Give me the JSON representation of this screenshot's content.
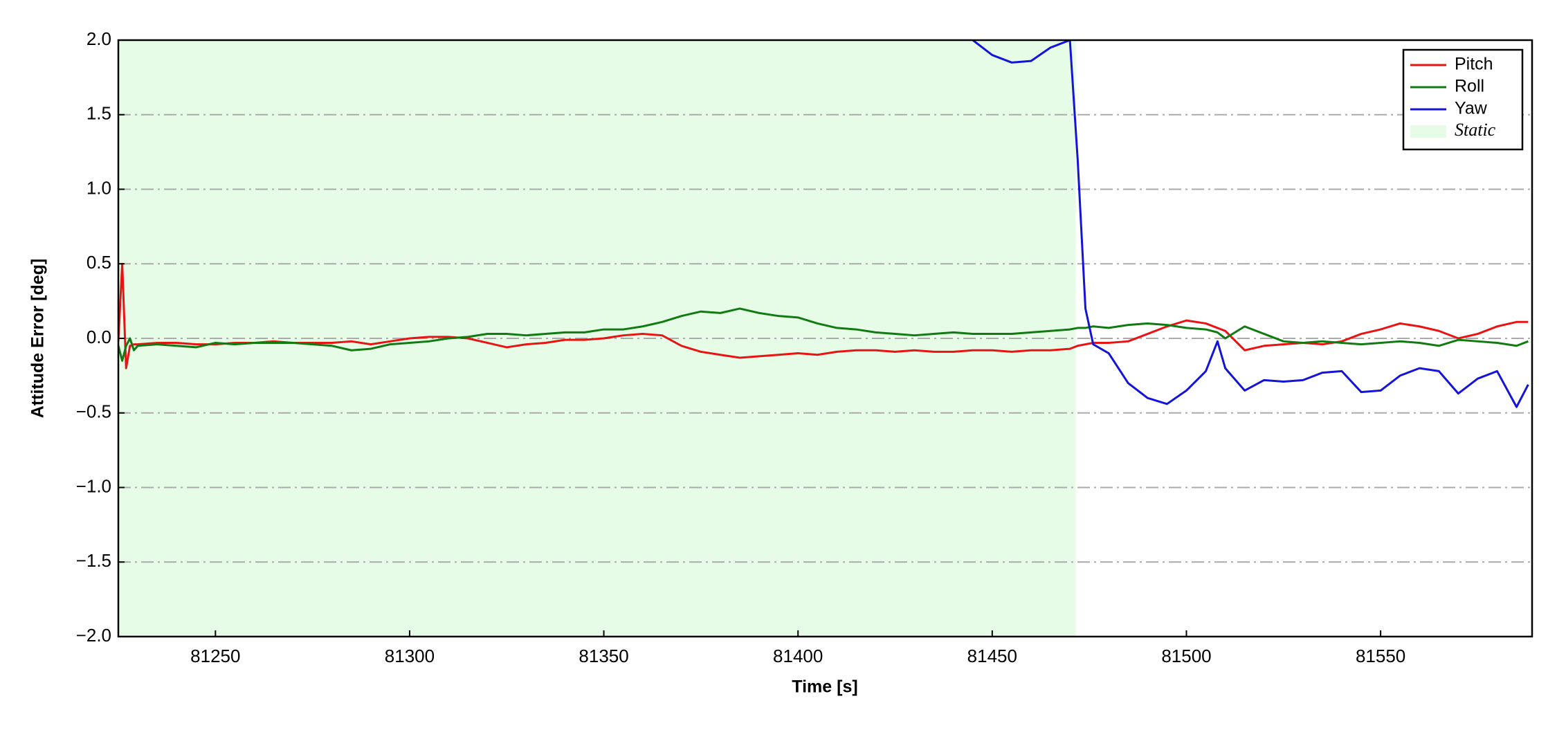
{
  "chart_data": {
    "type": "line",
    "xlabel": "Time [s]",
    "ylabel": "Attitude Error [deg]",
    "x": [
      81225,
      81226,
      81227,
      81228,
      81229,
      81230,
      81235,
      81240,
      81245,
      81250,
      81255,
      81260,
      81265,
      81270,
      81275,
      81280,
      81285,
      81290,
      81295,
      81300,
      81305,
      81310,
      81315,
      81320,
      81325,
      81330,
      81335,
      81340,
      81345,
      81350,
      81355,
      81360,
      81365,
      81370,
      81375,
      81380,
      81385,
      81390,
      81395,
      81400,
      81405,
      81410,
      81415,
      81420,
      81425,
      81430,
      81435,
      81440,
      81445,
      81450,
      81455,
      81460,
      81465,
      81470,
      81472,
      81474,
      81476,
      81480,
      81485,
      81490,
      81495,
      81500,
      81505,
      81508,
      81510,
      81515,
      81520,
      81525,
      81530,
      81535,
      81540,
      81545,
      81550,
      81555,
      81560,
      81565,
      81570,
      81575,
      81580,
      81585,
      81588
    ],
    "series": [
      {
        "name": "Pitch",
        "color": "#e81414",
        "values": [
          -0.02,
          0.5,
          -0.2,
          -0.05,
          -0.04,
          -0.04,
          -0.03,
          -0.03,
          -0.04,
          -0.04,
          -0.03,
          -0.03,
          -0.02,
          -0.03,
          -0.03,
          -0.03,
          -0.02,
          -0.04,
          -0.02,
          0.0,
          0.01,
          0.01,
          0.0,
          -0.03,
          -0.06,
          -0.04,
          -0.03,
          -0.01,
          -0.01,
          0.0,
          0.02,
          0.03,
          0.02,
          -0.05,
          -0.09,
          -0.11,
          -0.13,
          -0.12,
          -0.11,
          -0.1,
          -0.11,
          -0.09,
          -0.08,
          -0.08,
          -0.09,
          -0.08,
          -0.09,
          -0.09,
          -0.08,
          -0.08,
          -0.09,
          -0.08,
          -0.08,
          -0.07,
          -0.05,
          -0.04,
          -0.03,
          -0.03,
          -0.02,
          0.03,
          0.08,
          0.12,
          0.1,
          0.07,
          0.05,
          -0.08,
          -0.05,
          -0.04,
          -0.03,
          -0.04,
          -0.02,
          0.03,
          0.06,
          0.1,
          0.08,
          0.05,
          0.0,
          0.03,
          0.08,
          0.11,
          0.11
        ]
      },
      {
        "name": "Roll",
        "color": "#127a12",
        "values": [
          -0.05,
          -0.15,
          -0.05,
          0.0,
          -0.08,
          -0.05,
          -0.04,
          -0.05,
          -0.06,
          -0.03,
          -0.04,
          -0.03,
          -0.03,
          -0.03,
          -0.04,
          -0.05,
          -0.08,
          -0.07,
          -0.04,
          -0.03,
          -0.02,
          0.0,
          0.01,
          0.03,
          0.03,
          0.02,
          0.03,
          0.04,
          0.04,
          0.06,
          0.06,
          0.08,
          0.11,
          0.15,
          0.18,
          0.17,
          0.2,
          0.17,
          0.15,
          0.14,
          0.1,
          0.07,
          0.06,
          0.04,
          0.03,
          0.02,
          0.03,
          0.04,
          0.03,
          0.03,
          0.03,
          0.04,
          0.05,
          0.06,
          0.07,
          0.07,
          0.08,
          0.07,
          0.09,
          0.1,
          0.09,
          0.07,
          0.06,
          0.04,
          0.0,
          0.08,
          0.03,
          -0.02,
          -0.03,
          -0.02,
          -0.03,
          -0.04,
          -0.03,
          -0.02,
          -0.03,
          -0.05,
          -0.01,
          -0.02,
          -0.03,
          -0.05,
          -0.02
        ]
      },
      {
        "name": "Yaw",
        "color": "#1414d8",
        "values": [
          null,
          null,
          null,
          null,
          null,
          null,
          null,
          null,
          null,
          null,
          null,
          null,
          null,
          null,
          null,
          null,
          null,
          null,
          null,
          null,
          null,
          null,
          null,
          null,
          null,
          null,
          null,
          null,
          null,
          null,
          null,
          null,
          null,
          null,
          null,
          null,
          null,
          null,
          null,
          null,
          null,
          null,
          null,
          null,
          null,
          null,
          null,
          null,
          2.0,
          1.9,
          1.85,
          1.86,
          1.95,
          2.0,
          1.2,
          0.2,
          -0.04,
          -0.1,
          -0.3,
          -0.4,
          -0.44,
          -0.35,
          -0.22,
          -0.02,
          -0.2,
          -0.35,
          -0.28,
          -0.29,
          -0.28,
          -0.23,
          -0.22,
          -0.36,
          -0.35,
          -0.25,
          -0.2,
          -0.22,
          -0.37,
          -0.27,
          -0.22,
          -0.46,
          -0.31
        ]
      }
    ],
    "shaded_regions": [
      {
        "name": "Static",
        "start": 81225,
        "end": 81471.5,
        "color": "#e6fce6"
      }
    ],
    "xlim": [
      81225,
      81589
    ],
    "xticks": [
      81250,
      81300,
      81350,
      81400,
      81450,
      81500,
      81550
    ],
    "ylim": [
      -2,
      2
    ],
    "yticks": [
      {
        "value": -2,
        "label": "−2.0"
      },
      {
        "value": -1.5,
        "label": "−1.5"
      },
      {
        "value": -1,
        "label": "−1.0"
      },
      {
        "value": -0.5,
        "label": "−0.5"
      },
      {
        "value": 0,
        "label": "0.0"
      },
      {
        "value": 0.5,
        "label": "0.5"
      },
      {
        "value": 1,
        "label": "1.0"
      },
      {
        "value": 1.5,
        "label": "1.5"
      },
      {
        "value": 2,
        "label": "2.0"
      }
    ],
    "grid": true,
    "legend": "upper right"
  }
}
